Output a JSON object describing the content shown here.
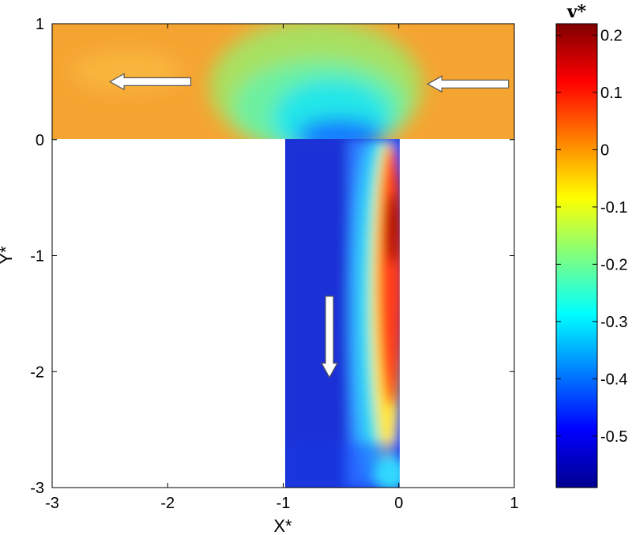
{
  "chart_data": {
    "type": "heatmap",
    "title": "",
    "xlabel": "X*",
    "ylabel": "Y*",
    "xlim": [
      -3,
      1
    ],
    "ylim": [
      -3,
      1
    ],
    "x_ticks": [
      "-3",
      "-2",
      "-1",
      "0",
      "1"
    ],
    "y_ticks": [
      "1",
      "0",
      "-1",
      "-2",
      "-3"
    ],
    "domain": {
      "main_channel": {
        "x": [
          -3,
          1
        ],
        "y": [
          0,
          1
        ]
      },
      "branch_channel": {
        "x": [
          -1,
          0
        ],
        "y": [
          -3,
          0
        ]
      }
    },
    "colorbar": {
      "label": "v*",
      "range": [
        -0.59,
        0.22
      ],
      "ticks": [
        "0.2",
        "0.1",
        "0",
        "-0.1",
        "-0.2",
        "-0.3",
        "-0.4",
        "-0.5"
      ],
      "colormap": "jet"
    },
    "field_estimates": [
      {
        "region": "main channel far field",
        "v": 0.01
      },
      {
        "region": "above branch entrance",
        "v": -0.3
      },
      {
        "region": "branch left side",
        "v": -0.55
      },
      {
        "region": "branch right side (recirculation)",
        "v": 0.2
      }
    ],
    "arrows": [
      {
        "name": "upper-left flow",
        "from": [
          -1.8,
          0.5
        ],
        "to": [
          -2.5,
          0.5
        ]
      },
      {
        "name": "upper-right flow",
        "from": [
          0.95,
          0.48
        ],
        "to": [
          0.25,
          0.48
        ]
      },
      {
        "name": "branch flow",
        "from": [
          -0.6,
          -1.35
        ],
        "to": [
          -0.6,
          -2.05
        ]
      }
    ]
  }
}
